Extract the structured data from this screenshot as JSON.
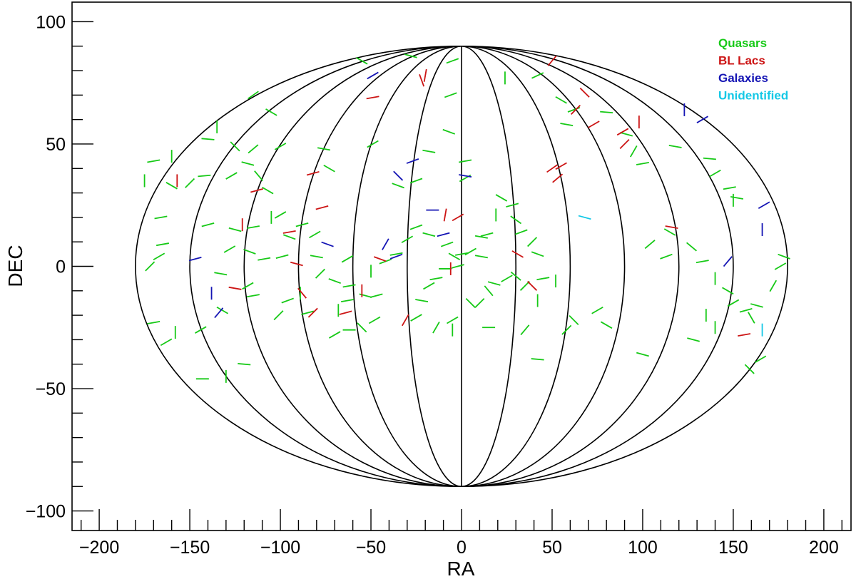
{
  "chart_data": {
    "type": "scatter",
    "title": "",
    "xlabel": "RA",
    "ylabel": "DEC",
    "xlim": [
      -215,
      215
    ],
    "ylim": [
      -108,
      108
    ],
    "xticks": [
      -200,
      -150,
      -100,
      -50,
      0,
      50,
      100,
      150,
      200
    ],
    "yticks": [
      -100,
      -50,
      0,
      50,
      100
    ],
    "projection": "aitoff-style full sky ellipse, meridians every 30 degrees",
    "meridians_ra": [
      -180,
      -150,
      -120,
      -90,
      -60,
      -30,
      0,
      30,
      60,
      90,
      120,
      150,
      180
    ],
    "marker": "short line segment (polarization angle)",
    "grid": false,
    "legend_position": "top-right",
    "series": [
      {
        "name": "Quasars",
        "color": "#16c916",
        "points": [
          [
            -55,
            84,
            60
          ],
          [
            -28,
            86,
            75
          ],
          [
            -5,
            84,
            -70
          ],
          [
            -115,
            70,
            -55
          ],
          [
            -105,
            63,
            60
          ],
          [
            -135,
            57,
            0
          ],
          [
            -140,
            52,
            85
          ],
          [
            -115,
            48,
            -50
          ],
          [
            -118,
            42,
            75
          ],
          [
            -125,
            49,
            45
          ],
          [
            -100,
            49,
            -60
          ],
          [
            -76,
            48,
            80
          ],
          [
            -73,
            40,
            60
          ],
          [
            -49,
            50,
            -60
          ],
          [
            -35,
            33,
            70
          ],
          [
            -25,
            35,
            -70
          ],
          [
            -18,
            47,
            80
          ],
          [
            -7,
            55,
            70
          ],
          [
            -6,
            70,
            -70
          ],
          [
            2,
            43,
            -80
          ],
          [
            2,
            36,
            -60
          ],
          [
            11,
            12,
            80
          ],
          [
            0,
            5,
            -80
          ],
          [
            -2,
            0,
            -75
          ],
          [
            -9,
            -1,
            90
          ],
          [
            -14,
            -5,
            -80
          ],
          [
            -18,
            -8,
            -60
          ],
          [
            -22,
            -14,
            80
          ],
          [
            -25,
            -21,
            -60
          ],
          [
            -14,
            -25,
            -30
          ],
          [
            -5,
            -26,
            0
          ],
          [
            24,
            77,
            0
          ],
          [
            42,
            78,
            -65
          ],
          [
            55,
            68,
            60
          ],
          [
            58,
            58,
            80
          ],
          [
            62,
            64,
            -70
          ],
          [
            80,
            63,
            85
          ],
          [
            91,
            54,
            75
          ],
          [
            95,
            47,
            -30
          ],
          [
            100,
            42,
            -80
          ],
          [
            118,
            49,
            80
          ],
          [
            137,
            44,
            85
          ],
          [
            140,
            38,
            -60
          ],
          [
            148,
            32,
            -80
          ],
          [
            152,
            28,
            80
          ],
          [
            150,
            27,
            0
          ],
          [
            115,
            14,
            60
          ],
          [
            104,
            9,
            -50
          ],
          [
            127,
            8,
            50
          ],
          [
            113,
            4,
            -70
          ],
          [
            133,
            2,
            -80
          ],
          [
            140,
            -5,
            0
          ],
          [
            147,
            -10,
            60
          ],
          [
            150,
            -15,
            -60
          ],
          [
            157,
            -18,
            -75
          ],
          [
            163,
            -16,
            75
          ],
          [
            160,
            -21,
            30
          ],
          [
            172,
            -8,
            -30
          ],
          [
            176,
            0,
            -60
          ],
          [
            178,
            4,
            70
          ],
          [
            135,
            -20,
            0
          ],
          [
            140,
            -25,
            0
          ],
          [
            128,
            -30,
            75
          ],
          [
            100,
            -36,
            75
          ],
          [
            165,
            -38,
            -60
          ],
          [
            159,
            -42,
            45
          ],
          [
            80,
            -24,
            60
          ],
          [
            75,
            -18,
            -60
          ],
          [
            62,
            -22,
            45
          ],
          [
            58,
            -26,
            -45
          ],
          [
            42,
            -38,
            85
          ],
          [
            35,
            -26,
            -40
          ],
          [
            42,
            -14,
            0
          ],
          [
            35,
            -8,
            -45
          ],
          [
            30,
            -4,
            50
          ],
          [
            25,
            -5,
            -60
          ],
          [
            18,
            -7,
            75
          ],
          [
            15,
            -10,
            40
          ],
          [
            10,
            -15,
            -45
          ],
          [
            5,
            -15,
            45
          ],
          [
            -5,
            -22,
            -60
          ],
          [
            15,
            -25,
            90
          ],
          [
            52,
            -6,
            0
          ],
          [
            45,
            -5,
            -80
          ],
          [
            42,
            5,
            70
          ],
          [
            39,
            10,
            -45
          ],
          [
            33,
            14,
            -70
          ],
          [
            30,
            19,
            55
          ],
          [
            28,
            25,
            -75
          ],
          [
            22,
            28,
            60
          ],
          [
            19,
            21,
            0
          ],
          [
            14,
            13,
            -75
          ],
          [
            11,
            4,
            80
          ],
          [
            5,
            6,
            -60
          ],
          [
            -4,
            4,
            60
          ],
          [
            -8,
            9,
            -70
          ],
          [
            -18,
            13,
            75
          ],
          [
            -25,
            16,
            -70
          ],
          [
            -30,
            11,
            -60
          ],
          [
            -36,
            5,
            -80
          ],
          [
            -42,
            2,
            -70
          ],
          [
            -50,
            -2,
            0
          ],
          [
            -63,
            3,
            -60
          ],
          [
            -62,
            -8,
            -80
          ],
          [
            -70,
            -6,
            70
          ],
          [
            -78,
            -3,
            -45
          ],
          [
            -80,
            4,
            80
          ],
          [
            -81,
            13,
            -60
          ],
          [
            -88,
            17,
            -75
          ],
          [
            -95,
            12,
            70
          ],
          [
            -99,
            4,
            -75
          ],
          [
            -109,
            3,
            -80
          ],
          [
            -117,
            6,
            70
          ],
          [
            -128,
            7,
            -60
          ],
          [
            -133,
            -3,
            80
          ],
          [
            -118,
            -8,
            -60
          ],
          [
            -115,
            -12,
            -80
          ],
          [
            -96,
            -14,
            -70
          ],
          [
            -89,
            -11,
            0
          ],
          [
            -85,
            -19,
            -75
          ],
          [
            -101,
            -20,
            -45
          ],
          [
            -70,
            -28,
            -60
          ],
          [
            -62,
            -26,
            90
          ],
          [
            -55,
            -25,
            45
          ],
          [
            -48,
            -22,
            -60
          ],
          [
            -47,
            -12,
            -75
          ],
          [
            -53,
            -12,
            75
          ],
          [
            -63,
            -14,
            -80
          ],
          [
            -68,
            -18,
            0
          ],
          [
            -132,
            -18,
            60
          ],
          [
            -144,
            -26,
            -60
          ],
          [
            -158,
            -27,
            0
          ],
          [
            -163,
            -31,
            -60
          ],
          [
            -170,
            -23,
            -80
          ],
          [
            -172,
            0,
            -45
          ],
          [
            -167,
            4,
            -60
          ],
          [
            -165,
            9,
            -80
          ],
          [
            -166,
            20,
            -80
          ],
          [
            -175,
            35,
            0
          ],
          [
            -170,
            43,
            -80
          ],
          [
            -160,
            45,
            0
          ],
          [
            -160,
            33,
            60
          ],
          [
            -150,
            34,
            -45
          ],
          [
            -142,
            37,
            -85
          ],
          [
            -127,
            37,
            -60
          ],
          [
            -112,
            37,
            40
          ],
          [
            -107,
            31,
            60
          ],
          [
            -100,
            21,
            -60
          ],
          [
            -105,
            20,
            0
          ],
          [
            -115,
            16,
            -80
          ],
          [
            -125,
            15,
            75
          ],
          [
            -140,
            17,
            -75
          ],
          [
            -130,
            -45,
            0
          ],
          [
            -143,
            -46,
            90
          ],
          [
            -120,
            -40,
            85
          ]
        ]
      },
      {
        "name": "BL Lacs",
        "color": "#cc1414",
        "points": [
          [
            -49,
            69,
            -80
          ],
          [
            -22,
            76,
            20
          ],
          [
            -20,
            78,
            -10
          ],
          [
            50,
            84,
            -40
          ],
          [
            68,
            71,
            45
          ],
          [
            73,
            58,
            -60
          ],
          [
            89,
            55,
            -60
          ],
          [
            90,
            50,
            -45
          ],
          [
            98,
            59,
            0
          ],
          [
            55,
            41,
            -60
          ],
          [
            53,
            36,
            -50
          ],
          [
            50,
            40,
            -55
          ],
          [
            63,
            64,
            -45
          ],
          [
            -113,
            31,
            -75
          ],
          [
            -82,
            38,
            -75
          ],
          [
            -77,
            24,
            -75
          ],
          [
            -95,
            14,
            -80
          ],
          [
            -91,
            1,
            75
          ],
          [
            -88,
            -11,
            40
          ],
          [
            -125,
            -9,
            80
          ],
          [
            -82,
            -19,
            -45
          ],
          [
            -64,
            -19,
            -75
          ],
          [
            -31,
            -22,
            -30
          ],
          [
            -55,
            -10,
            0
          ],
          [
            -9,
            21,
            -10
          ],
          [
            -2,
            20,
            -60
          ],
          [
            -6,
            -1,
            0
          ],
          [
            -45,
            3,
            70
          ],
          [
            31,
            5,
            60
          ],
          [
            39,
            -8,
            45
          ],
          [
            116,
            16,
            80
          ],
          [
            156,
            -28,
            -80
          ],
          [
            -157,
            35,
            0
          ],
          [
            -121,
            17,
            0
          ]
        ]
      },
      {
        "name": "Galaxies",
        "color": "#1414b4",
        "points": [
          [
            -49,
            78,
            -60
          ],
          [
            -27,
            43,
            -70
          ],
          [
            -16,
            23,
            90
          ],
          [
            -10,
            13,
            -75
          ],
          [
            -35,
            37,
            45
          ],
          [
            2,
            37,
            80
          ],
          [
            -74,
            9,
            70
          ],
          [
            -36,
            4,
            -70
          ],
          [
            -42,
            9,
            -30
          ],
          [
            -147,
            3,
            -75
          ],
          [
            -134,
            -19,
            -40
          ],
          [
            -138,
            -11,
            0
          ],
          [
            133,
            60,
            -60
          ],
          [
            123,
            64,
            0
          ],
          [
            167,
            25,
            -60
          ],
          [
            166,
            15,
            0
          ],
          [
            147,
            2,
            -40
          ]
        ]
      },
      {
        "name": "Unidentified",
        "color": "#14c8e6",
        "points": [
          [
            68,
            20,
            75
          ],
          [
            166,
            -26,
            0
          ]
        ]
      }
    ]
  }
}
